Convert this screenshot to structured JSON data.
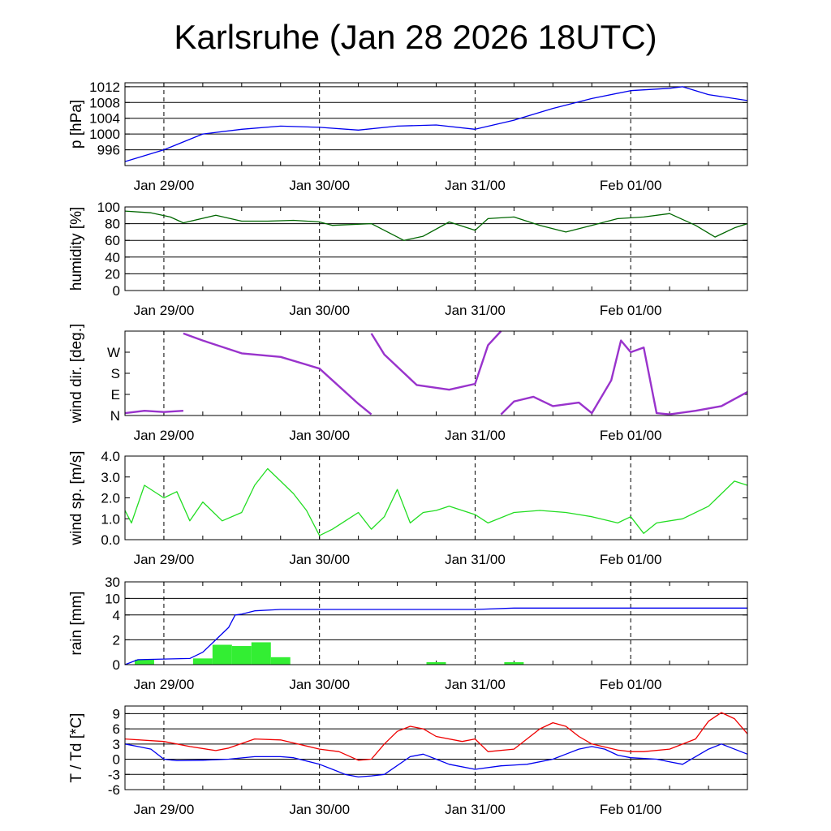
{
  "title": "Karlsruhe (Jan 28 2026 18UTC)",
  "x_tick_labels": [
    "Jan 29/00",
    "Jan 30/00",
    "Jan 31/00",
    "Feb 01/00"
  ],
  "x_axis_hours": {
    "start": 0,
    "end": 96,
    "major_ticks": [
      6,
      30,
      54,
      78
    ]
  },
  "chart_data": [
    {
      "type": "line",
      "ylabel": "p [hPa]",
      "ylim": [
        992,
        1013
      ],
      "yticks": [
        996,
        1000,
        1004,
        1008,
        1012
      ],
      "ytick_labels": [
        "996",
        "1000",
        "1004",
        "1008",
        "1012"
      ],
      "grid": true,
      "series": [
        {
          "color": "#0000ee",
          "x": [
            0,
            6,
            12,
            18,
            24,
            30,
            36,
            42,
            48,
            54,
            60,
            66,
            72,
            78,
            84,
            86,
            90,
            96
          ],
          "values": [
            993.0,
            996.0,
            1000.0,
            1001.2,
            1002.0,
            1001.7,
            1001.0,
            1002.0,
            1002.3,
            1001.2,
            1003.5,
            1006.5,
            1009.0,
            1011.0,
            1011.6,
            1012.0,
            1010.0,
            1008.5
          ]
        }
      ]
    },
    {
      "type": "line",
      "ylabel": "humidity [%]",
      "ylim": [
        0,
        100
      ],
      "yticks": [
        0,
        20,
        40,
        60,
        80,
        100
      ],
      "ytick_labels": [
        "0",
        "20",
        "40",
        "60",
        "80",
        "100"
      ],
      "grid": true,
      "series": [
        {
          "color": "#006600",
          "x": [
            0,
            4,
            7,
            9,
            14,
            18,
            22,
            26,
            30,
            32,
            38,
            43,
            46,
            50,
            54,
            56,
            60,
            64,
            68,
            72,
            76,
            80,
            84,
            88,
            91,
            94,
            96
          ],
          "values": [
            95,
            93,
            88,
            81,
            90,
            83,
            83,
            84,
            82,
            78,
            80,
            60,
            65,
            82,
            72,
            86,
            88,
            78,
            70,
            78,
            86,
            88,
            92,
            78,
            64,
            75,
            80
          ]
        }
      ]
    },
    {
      "type": "scatter",
      "ylabel": "wind dir. [deg.]",
      "ylim": [
        0,
        360
      ],
      "yticks": [
        0,
        90,
        180,
        270
      ],
      "ytick_labels": [
        "N",
        "E",
        "S",
        "W"
      ],
      "grid": false,
      "series": [
        {
          "color": "#9933cc",
          "x": [
            0,
            3,
            6,
            9
          ],
          "values": [
            10,
            20,
            15,
            20
          ]
        },
        {
          "color": "#9933cc",
          "x": [
            9,
            12,
            18,
            24,
            30,
            32,
            36,
            38
          ],
          "values": [
            350,
            320,
            265,
            250,
            200,
            150,
            50,
            5
          ]
        },
        {
          "color": "#9933cc",
          "x": [
            38,
            40,
            45,
            50,
            54,
            56,
            58
          ],
          "values": [
            350,
            260,
            130,
            110,
            135,
            300,
            360
          ]
        },
        {
          "color": "#9933cc",
          "x": [
            58,
            60,
            63,
            66,
            70,
            72,
            75,
            76.5,
            78,
            80,
            82,
            84,
            88,
            92,
            96
          ],
          "values": [
            5,
            60,
            80,
            40,
            55,
            10,
            150,
            320,
            270,
            290,
            10,
            5,
            20,
            40,
            100
          ]
        }
      ]
    },
    {
      "type": "line",
      "ylabel": "wind sp. [m/s]",
      "ylim": [
        0,
        4
      ],
      "yticks": [
        0,
        1,
        2,
        3,
        4
      ],
      "ytick_labels": [
        "0.0",
        "1.0",
        "2.0",
        "3.0",
        "4.0"
      ],
      "grid": false,
      "series": [
        {
          "color": "#22dd22",
          "x": [
            0,
            1,
            3,
            6,
            8,
            10,
            12,
            15,
            18,
            20,
            22,
            24,
            26,
            28,
            30,
            32,
            36,
            38,
            40,
            42,
            44,
            46,
            48,
            50,
            54,
            56,
            60,
            64,
            68,
            72,
            76,
            78,
            80,
            82,
            86,
            90,
            92,
            94,
            96
          ],
          "values": [
            1.4,
            0.8,
            2.6,
            2.0,
            2.3,
            0.9,
            1.8,
            0.9,
            1.3,
            2.6,
            3.4,
            2.8,
            2.2,
            1.4,
            0.2,
            0.5,
            1.3,
            0.5,
            1.1,
            2.4,
            0.8,
            1.3,
            1.4,
            1.6,
            1.2,
            0.8,
            1.3,
            1.4,
            1.3,
            1.1,
            0.8,
            1.1,
            0.3,
            0.8,
            1.0,
            1.6,
            2.2,
            2.8,
            2.6
          ]
        }
      ]
    },
    {
      "type": "bar",
      "ylabel": "rain [mm]",
      "ylim": [
        0,
        30
      ],
      "yticks": [
        0,
        2,
        4,
        10,
        30
      ],
      "ytick_labels": [
        "0",
        "2",
        "4",
        "10",
        "30"
      ],
      "grid": true,
      "bars": {
        "color": "#33ee33",
        "bins": [
          [
            1.5,
            4.5
          ],
          [
            10.5,
            13.5
          ],
          [
            13.5,
            16.5
          ],
          [
            16.5,
            19.5
          ],
          [
            19.5,
            22.5
          ],
          [
            22.5,
            25.5
          ],
          [
            46.5,
            49.5
          ],
          [
            58.5,
            61.5
          ]
        ],
        "values": [
          0.4,
          0.5,
          1.6,
          1.5,
          1.8,
          0.6,
          0.2,
          0.2
        ]
      },
      "series": [
        {
          "color": "#0000ee",
          "x": [
            0,
            2,
            10,
            12,
            14,
            16,
            17,
            18,
            20,
            24,
            54,
            60,
            96
          ],
          "values": [
            0,
            0.4,
            0.5,
            1.0,
            2.0,
            3.0,
            4.0,
            4.3,
            5.5,
            6.0,
            6.0,
            6.5,
            6.5
          ]
        }
      ]
    },
    {
      "type": "line",
      "ylabel": "T / Td [*C]",
      "ylim": [
        -6,
        10.5
      ],
      "yticks": [
        -6,
        -3,
        0,
        3,
        6,
        9
      ],
      "ytick_labels": [
        "-6",
        "-3",
        "0",
        "3",
        "6",
        "9"
      ],
      "grid": true,
      "series": [
        {
          "color": "#ee0000",
          "x": [
            0,
            6,
            10,
            14,
            16,
            20,
            24,
            30,
            33,
            36,
            38,
            40,
            42,
            44,
            46,
            48,
            52,
            54,
            56,
            60,
            64,
            66,
            68,
            70,
            72,
            76,
            78,
            80,
            84,
            88,
            90,
            92,
            94,
            96
          ],
          "values": [
            4.0,
            3.5,
            2.5,
            1.7,
            2.2,
            4.0,
            3.8,
            2.0,
            1.5,
            -0.2,
            0.0,
            3.0,
            5.5,
            6.5,
            6.0,
            4.5,
            3.5,
            4.0,
            1.5,
            2.0,
            6.0,
            7.2,
            6.5,
            4.5,
            3.0,
            1.8,
            1.5,
            1.5,
            2.0,
            4.0,
            7.5,
            9.2,
            8.0,
            5.0
          ]
        },
        {
          "color": "#0000ee",
          "x": [
            0,
            2,
            4,
            6,
            8,
            12,
            16,
            20,
            24,
            26,
            30,
            32,
            34,
            36,
            38,
            40,
            44,
            46,
            48,
            50,
            54,
            58,
            62,
            66,
            68,
            70,
            72,
            74,
            76,
            78,
            82,
            84,
            86,
            88,
            90,
            92,
            96
          ],
          "values": [
            3.0,
            2.5,
            2.0,
            0.0,
            -0.3,
            -0.2,
            0.0,
            0.5,
            0.5,
            0.3,
            -1.0,
            -2.0,
            -3.0,
            -3.5,
            -3.3,
            -3.0,
            0.5,
            1.0,
            0.0,
            -1.0,
            -2.0,
            -1.3,
            -1.0,
            0.0,
            1.0,
            2.0,
            2.5,
            2.0,
            0.8,
            0.3,
            0.0,
            -0.5,
            -1.0,
            0.5,
            2.0,
            3.0,
            1.0
          ]
        }
      ]
    }
  ]
}
